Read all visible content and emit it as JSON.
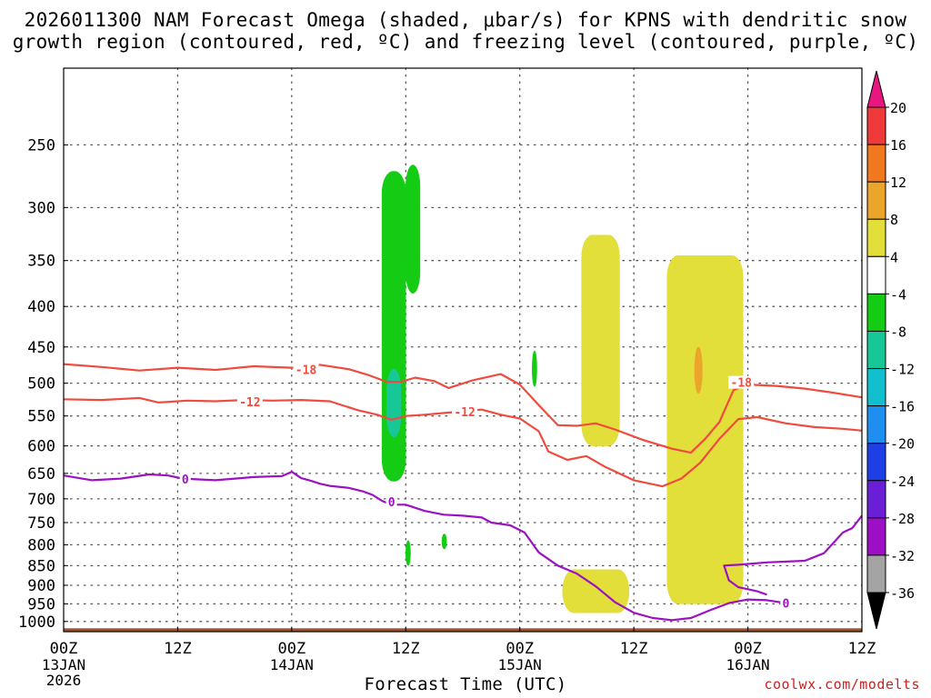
{
  "title": {
    "line1": "2026011300 NAM Forecast Omega (shaded, μbar/s) for KPNS with dendritic snow",
    "line2": "growth region (contoured, red, ºC) and freezing level (contoured, purple, ºC)"
  },
  "credit": "coolwx.com/modelts",
  "chart_data": {
    "type": "heatmap",
    "xlabel": "Forecast Time (UTC)",
    "ylabel": "",
    "x_units": "forecast hour",
    "xlim": [
      0,
      84
    ],
    "y_units": "pressure (hPa)",
    "ylim": [
      1030,
      200
    ],
    "y_scale": "log",
    "y_ticks": [
      250,
      300,
      350,
      400,
      450,
      500,
      550,
      600,
      650,
      700,
      750,
      800,
      850,
      900,
      950,
      1000
    ],
    "x_ticks": [
      {
        "hour": 0,
        "label": "00Z",
        "sub1": "13JAN",
        "sub2": "2026"
      },
      {
        "hour": 12,
        "label": "12Z",
        "sub1": "",
        "sub2": ""
      },
      {
        "hour": 24,
        "label": "00Z",
        "sub1": "14JAN",
        "sub2": ""
      },
      {
        "hour": 36,
        "label": "12Z",
        "sub1": "",
        "sub2": ""
      },
      {
        "hour": 48,
        "label": "00Z",
        "sub1": "15JAN",
        "sub2": ""
      },
      {
        "hour": 60,
        "label": "12Z",
        "sub1": "",
        "sub2": ""
      },
      {
        "hour": 72,
        "label": "00Z",
        "sub1": "16JAN",
        "sub2": ""
      },
      {
        "hour": 84,
        "label": "12Z",
        "sub1": "",
        "sub2": ""
      }
    ],
    "grid": true,
    "colorbar": {
      "levels": [
        -36,
        -32,
        -28,
        -24,
        -20,
        -16,
        -12,
        -8,
        -4,
        4,
        8,
        12,
        16,
        20
      ],
      "labels": [
        "20",
        "16",
        "12",
        "8",
        "4",
        "-4",
        "-8",
        "-12",
        "-16",
        "-20",
        "-24",
        "-28",
        "-32",
        "-36"
      ],
      "colors_top_to_bottom": [
        "#e8177f",
        "#f03a3a",
        "#f0781e",
        "#eba52a",
        "#e2de3a",
        "#ffffff",
        "#13cc13",
        "#17c896",
        "#12bfcf",
        "#1e8ff0",
        "#1f3fe6",
        "#6a1fd6",
        "#9c0fc4",
        "#a4a4a4",
        "#000000"
      ]
    },
    "surface": {
      "name": "terrain",
      "color": "#a0522d",
      "pressure": 1020
    },
    "series": [
      {
        "name": "Isotherm -18 C (dendritic growth top)",
        "color": "#ef4b3f",
        "label": "-18",
        "label_points": [
          [
            25.5,
            482
          ],
          [
            71.3,
            500
          ]
        ],
        "points": [
          [
            0,
            473
          ],
          [
            4,
            477
          ],
          [
            8,
            482
          ],
          [
            12,
            478
          ],
          [
            16,
            481
          ],
          [
            20,
            476
          ],
          [
            24,
            478
          ],
          [
            27,
            474
          ],
          [
            30,
            480
          ],
          [
            32,
            488
          ],
          [
            34,
            498
          ],
          [
            35.5,
            498
          ],
          [
            37,
            492
          ],
          [
            39,
            497
          ],
          [
            40.5,
            507
          ],
          [
            43,
            496
          ],
          [
            46,
            487
          ],
          [
            48,
            502
          ],
          [
            50,
            533
          ],
          [
            52,
            565
          ],
          [
            54,
            566
          ],
          [
            56,
            562
          ],
          [
            58,
            572
          ],
          [
            61,
            590
          ],
          [
            64,
            605
          ],
          [
            66,
            612
          ],
          [
            67.5,
            588
          ],
          [
            69,
            560
          ],
          [
            70.5,
            510
          ],
          [
            72,
            502
          ],
          [
            75,
            504
          ],
          [
            78,
            508
          ],
          [
            81,
            514
          ],
          [
            84,
            521
          ]
        ]
      },
      {
        "name": "Isotherm -12 C (dendritic growth bottom)",
        "color": "#ef4b3f",
        "label": "-12",
        "label_points": [
          [
            19.6,
            529
          ],
          [
            42.2,
            545
          ]
        ],
        "points": [
          [
            0,
            524
          ],
          [
            4,
            525
          ],
          [
            8,
            522
          ],
          [
            10,
            529
          ],
          [
            13,
            526
          ],
          [
            16,
            527
          ],
          [
            19,
            525
          ],
          [
            22,
            526
          ],
          [
            25,
            525
          ],
          [
            28,
            527
          ],
          [
            31,
            541
          ],
          [
            33,
            548
          ],
          [
            34.5,
            556
          ],
          [
            36,
            550
          ],
          [
            38,
            548
          ],
          [
            41,
            544
          ],
          [
            44,
            540
          ],
          [
            46,
            548
          ],
          [
            48,
            554
          ],
          [
            50,
            575
          ],
          [
            51,
            610
          ],
          [
            53,
            625
          ],
          [
            55,
            618
          ],
          [
            57,
            638
          ],
          [
            60,
            663
          ],
          [
            63,
            675
          ],
          [
            65,
            660
          ],
          [
            67,
            630
          ],
          [
            69,
            588
          ],
          [
            71,
            555
          ],
          [
            73,
            552
          ],
          [
            76,
            562
          ],
          [
            79,
            568
          ],
          [
            82,
            571
          ],
          [
            84,
            574
          ]
        ]
      },
      {
        "name": "Isotherm 0 C (freezing level)",
        "color": "#9c12c2",
        "label": "0",
        "label_points": [
          [
            12.8,
            662
          ],
          [
            34.5,
            708
          ],
          [
            76,
            950
          ]
        ],
        "points": [
          [
            0,
            654
          ],
          [
            3,
            663
          ],
          [
            6,
            660
          ],
          [
            9,
            652
          ],
          [
            11,
            654
          ],
          [
            12.5,
            660
          ],
          [
            16,
            663
          ],
          [
            20,
            657
          ],
          [
            23,
            655
          ],
          [
            24,
            647
          ],
          [
            25,
            659
          ],
          [
            26,
            664
          ],
          [
            27,
            670
          ],
          [
            28,
            674
          ],
          [
            30,
            678
          ],
          [
            31.5,
            685
          ],
          [
            32.5,
            692
          ],
          [
            33.5,
            704
          ],
          [
            34.5,
            712
          ],
          [
            36,
            712
          ],
          [
            38,
            725
          ],
          [
            40,
            733
          ],
          [
            42,
            735
          ],
          [
            44,
            739
          ],
          [
            45,
            750
          ],
          [
            47,
            756
          ],
          [
            48.5,
            772
          ],
          [
            50,
            818
          ],
          [
            52,
            850
          ],
          [
            54,
            870
          ],
          [
            56,
            903
          ],
          [
            58,
            945
          ],
          [
            60,
            975
          ],
          [
            62,
            990
          ],
          [
            64,
            996
          ],
          [
            66,
            990
          ],
          [
            68,
            968
          ],
          [
            70,
            948
          ],
          [
            72,
            938
          ],
          [
            74,
            940
          ],
          [
            76,
            948
          ]
        ]
      },
      {
        "name": "Isotherm 0 C (second segment)",
        "color": "#9c12c2",
        "label": "",
        "label_points": [],
        "points": [
          [
            74,
            925
          ],
          [
            73,
            916
          ],
          [
            71,
            905
          ],
          [
            70,
            887
          ],
          [
            69.5,
            850
          ],
          [
            71,
            848
          ],
          [
            74,
            842
          ],
          [
            78,
            838
          ],
          [
            80,
            820
          ],
          [
            82,
            772
          ],
          [
            83,
            762
          ],
          [
            84,
            735
          ]
        ]
      }
    ],
    "shaded_regions": [
      {
        "value_range": [
          -8,
          -4
        ],
        "color": "#13cc13",
        "hours": [
          33.5,
          36.0
        ],
        "pressure": [
          270,
          665
        ],
        "note": "upward motion band near 09Z 14JAN"
      },
      {
        "value_range": [
          -12,
          -8
        ],
        "color": "#17c896",
        "hours": [
          34.0,
          35.5
        ],
        "pressure": [
          480,
          585
        ],
        "note": "core of upward motion"
      },
      {
        "value_range": [
          -8,
          -4
        ],
        "color": "#13cc13",
        "hours": [
          36.0,
          37.5
        ],
        "pressure": [
          265,
          385
        ],
        "note": "upper upward motion"
      },
      {
        "value_range": [
          -8,
          -4
        ],
        "color": "#13cc13",
        "hours": [
          36.0,
          36.5
        ],
        "pressure": [
          790,
          850
        ],
        "note": "small low-level area"
      },
      {
        "value_range": [
          -8,
          -4
        ],
        "color": "#13cc13",
        "hours": [
          39.8,
          40.3
        ],
        "pressure": [
          775,
          810
        ],
        "note": "small low-level area"
      },
      {
        "value_range": [
          -8,
          -4
        ],
        "color": "#13cc13",
        "hours": [
          49.3,
          49.8
        ],
        "pressure": [
          455,
          505
        ],
        "note": "small mid-level area"
      },
      {
        "value_range": [
          4,
          8
        ],
        "color": "#e2de3a",
        "hours": [
          54.5,
          58.5
        ],
        "pressure": [
          325,
          600
        ],
        "note": "sinking motion 15JAN"
      },
      {
        "value_range": [
          4,
          8
        ],
        "color": "#e2de3a",
        "hours": [
          52.5,
          59.5
        ],
        "pressure": [
          860,
          975
        ],
        "note": "low-level sinking"
      },
      {
        "value_range": [
          4,
          8
        ],
        "color": "#e2de3a",
        "hours": [
          63.5,
          71.5
        ],
        "pressure": [
          345,
          950
        ],
        "note": "deep sinking motion"
      },
      {
        "value_range": [
          8,
          12
        ],
        "color": "#eba52a",
        "hours": [
          66.4,
          67.2
        ],
        "pressure": [
          450,
          515
        ],
        "note": "stronger sinking core"
      }
    ]
  }
}
